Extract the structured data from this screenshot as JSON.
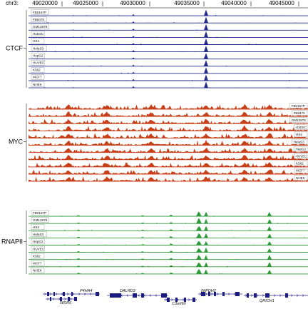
{
  "browser": {
    "chrom_label": "chr3:",
    "ruler_ticks": [
      "49020000",
      "49025000",
      "49030000",
      "49035000",
      "49040000",
      "49045000"
    ]
  },
  "tracks": {
    "ctcf": {
      "label": "CTCF",
      "color": "#1f2a8a",
      "cells": [
        "FB0167P",
        "FB8470",
        "GM12878",
        "H1ESC",
        "HS4",
        "HelaS3",
        "HepG2",
        "HUVEC",
        "K562",
        "MCF7",
        "NHEK"
      ]
    },
    "myc": {
      "label": "MYC",
      "color": "#c8401a",
      "cells": [
        "FB0167P",
        "FB8470",
        "GM12878",
        "H1ESC",
        "HS4",
        "HelaS3",
        "HepG2",
        "HUVEC",
        "K562",
        "MCF7",
        "NHEK"
      ]
    },
    "rnapii": {
      "label": "RNAPII",
      "color": "#2e9a3a",
      "cells": [
        "FB0167P",
        "GM12878",
        "HS4",
        "HelaS3",
        "HepG2",
        "HUVEC",
        "K562",
        "MCF7",
        "NHEK"
      ]
    }
  },
  "genes": [
    {
      "name": "P4HA4"
    },
    {
      "name": "WDR6"
    },
    {
      "name": "DALRD3"
    },
    {
      "name": "C3orf60"
    },
    {
      "name": "IMPDH2"
    },
    {
      "name": "QRICH1"
    }
  ]
}
